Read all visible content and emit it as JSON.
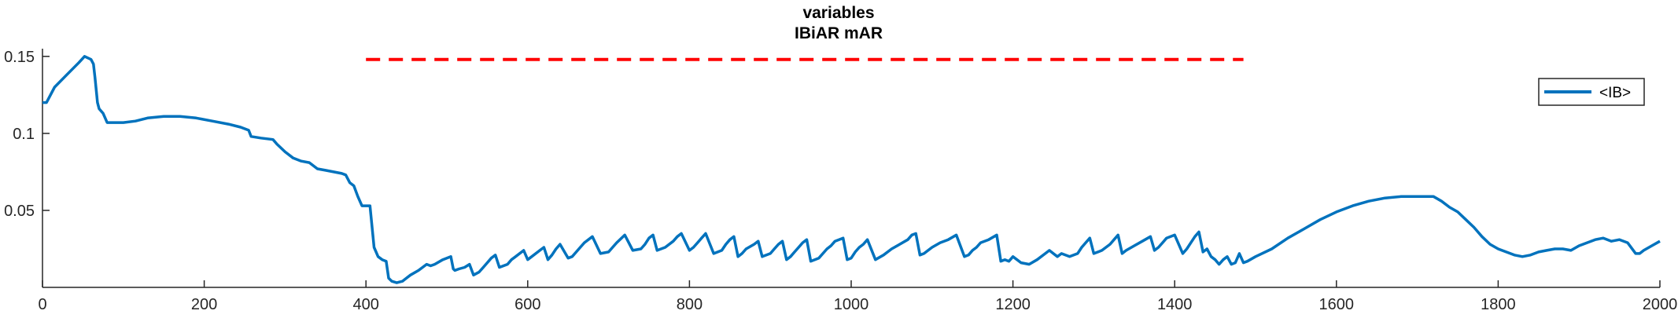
{
  "chart_data": {
    "type": "line",
    "title": [
      "variables",
      "IBiAR mAR"
    ],
    "xlabel": "",
    "ylabel": "",
    "xlim": [
      0,
      2000
    ],
    "ylim": [
      0.0,
      0.155
    ],
    "xticks": [
      0,
      200,
      400,
      600,
      800,
      1000,
      1200,
      1400,
      1600,
      1800,
      2000
    ],
    "xtick_labels": [
      "0",
      "200",
      "400",
      "600",
      "800",
      "1000",
      "1200",
      "1400",
      "1600",
      "1800",
      "2000"
    ],
    "yticks": [
      0.05,
      0.1,
      0.15
    ],
    "ytick_labels": [
      "0.05",
      "0.1",
      "0.15"
    ],
    "grid": false,
    "legend_position": "top-right",
    "series": [
      {
        "name": "<IB>",
        "color": "#0072BD",
        "x": [
          0,
          5,
          15,
          30,
          45,
          52,
          60,
          63,
          65,
          68,
          70,
          75,
          80,
          82,
          90,
          100,
          115,
          130,
          150,
          170,
          190,
          210,
          230,
          245,
          255,
          258,
          270,
          285,
          290,
          300,
          310,
          320,
          330,
          340,
          350,
          360,
          370,
          375,
          380,
          385,
          390,
          395,
          400,
          402,
          405,
          410,
          415,
          420,
          425,
          428,
          432,
          438,
          445,
          450,
          455,
          465,
          475,
          480,
          485,
          495,
          505,
          508,
          510,
          515,
          522,
          528,
          533,
          540,
          545,
          550,
          555,
          560,
          565,
          575,
          580,
          585,
          595,
          600,
          605,
          615,
          620,
          625,
          630,
          635,
          640,
          650,
          655,
          660,
          665,
          670,
          680,
          690,
          700,
          705,
          710,
          720,
          730,
          740,
          745,
          750,
          755,
          760,
          770,
          780,
          785,
          790,
          800,
          805,
          810,
          815,
          820,
          830,
          840,
          845,
          850,
          855,
          860,
          865,
          870,
          880,
          885,
          890,
          900,
          905,
          910,
          915,
          920,
          925,
          930,
          935,
          940,
          945,
          950,
          960,
          965,
          970,
          975,
          980,
          990,
          995,
          1000,
          1005,
          1010,
          1015,
          1020,
          1030,
          1040,
          1050,
          1060,
          1070,
          1075,
          1080,
          1085,
          1090,
          1100,
          1110,
          1120,
          1130,
          1140,
          1145,
          1150,
          1155,
          1160,
          1170,
          1180,
          1185,
          1190,
          1195,
          1200,
          1210,
          1220,
          1230,
          1240,
          1245,
          1250,
          1255,
          1260,
          1270,
          1280,
          1285,
          1290,
          1295,
          1300,
          1310,
          1320,
          1325,
          1330,
          1335,
          1340,
          1350,
          1360,
          1370,
          1375,
          1380,
          1385,
          1390,
          1400,
          1410,
          1415,
          1420,
          1425,
          1430,
          1435,
          1440,
          1445,
          1450,
          1455,
          1460,
          1465,
          1470,
          1475,
          1480,
          1485,
          1490,
          1500,
          1520,
          1540,
          1560,
          1580,
          1600,
          1620,
          1640,
          1660,
          1680,
          1700,
          1708,
          1712,
          1720,
          1730,
          1740,
          1750,
          1760,
          1770,
          1780,
          1790,
          1800,
          1810,
          1820,
          1830,
          1840,
          1850,
          1860,
          1870,
          1880,
          1890,
          1900,
          1910,
          1920,
          1930,
          1940,
          1950,
          1960,
          1970,
          1975,
          1980,
          1990,
          2000
        ],
        "values": [
          0.12,
          0.12,
          0.13,
          0.138,
          0.146,
          0.15,
          0.148,
          0.145,
          0.136,
          0.12,
          0.116,
          0.113,
          0.107,
          0.107,
          0.107,
          0.107,
          0.108,
          0.11,
          0.111,
          0.111,
          0.11,
          0.108,
          0.106,
          0.104,
          0.102,
          0.098,
          0.097,
          0.096,
          0.093,
          0.088,
          0.084,
          0.082,
          0.081,
          0.077,
          0.076,
          0.075,
          0.074,
          0.073,
          0.068,
          0.066,
          0.059,
          0.053,
          0.053,
          0.053,
          0.053,
          0.026,
          0.02,
          0.018,
          0.017,
          0.006,
          0.004,
          0.003,
          0.004,
          0.006,
          0.008,
          0.011,
          0.015,
          0.014,
          0.015,
          0.018,
          0.02,
          0.012,
          0.011,
          0.012,
          0.013,
          0.015,
          0.008,
          0.01,
          0.013,
          0.016,
          0.019,
          0.021,
          0.013,
          0.015,
          0.018,
          0.02,
          0.024,
          0.018,
          0.02,
          0.024,
          0.026,
          0.018,
          0.021,
          0.025,
          0.028,
          0.019,
          0.02,
          0.023,
          0.026,
          0.029,
          0.033,
          0.022,
          0.023,
          0.026,
          0.029,
          0.034,
          0.024,
          0.025,
          0.028,
          0.032,
          0.034,
          0.024,
          0.026,
          0.03,
          0.033,
          0.035,
          0.024,
          0.026,
          0.029,
          0.032,
          0.035,
          0.022,
          0.024,
          0.028,
          0.031,
          0.033,
          0.02,
          0.022,
          0.025,
          0.028,
          0.03,
          0.02,
          0.022,
          0.025,
          0.028,
          0.03,
          0.018,
          0.02,
          0.023,
          0.026,
          0.029,
          0.031,
          0.017,
          0.019,
          0.022,
          0.025,
          0.027,
          0.03,
          0.032,
          0.018,
          0.019,
          0.023,
          0.026,
          0.028,
          0.031,
          0.018,
          0.021,
          0.025,
          0.028,
          0.031,
          0.034,
          0.035,
          0.021,
          0.022,
          0.026,
          0.029,
          0.031,
          0.034,
          0.02,
          0.021,
          0.024,
          0.026,
          0.029,
          0.031,
          0.034,
          0.017,
          0.018,
          0.017,
          0.02,
          0.016,
          0.015,
          0.018,
          0.022,
          0.024,
          0.022,
          0.02,
          0.022,
          0.02,
          0.022,
          0.026,
          0.029,
          0.032,
          0.022,
          0.024,
          0.028,
          0.031,
          0.034,
          0.022,
          0.024,
          0.027,
          0.03,
          0.033,
          0.024,
          0.026,
          0.029,
          0.032,
          0.034,
          0.022,
          0.025,
          0.029,
          0.033,
          0.036,
          0.023,
          0.025,
          0.02,
          0.018,
          0.015,
          0.018,
          0.02,
          0.015,
          0.016,
          0.022,
          0.016,
          0.017,
          0.02,
          0.025,
          0.032,
          0.038,
          0.044,
          0.049,
          0.053,
          0.056,
          0.058,
          0.059,
          0.059,
          0.059,
          0.059,
          0.059,
          0.056,
          0.052,
          0.049,
          0.044,
          0.039,
          0.033,
          0.028,
          0.025,
          0.023,
          0.021,
          0.02,
          0.021,
          0.023,
          0.024,
          0.025,
          0.025,
          0.024,
          0.027,
          0.029,
          0.031,
          0.032,
          0.03,
          0.031,
          0.029,
          0.022,
          0.022,
          0.024,
          0.027,
          0.03
        ]
      },
      {
        "name": "",
        "color": "#FF0000",
        "style": "dashed",
        "x": [
          400,
          1485
        ],
        "values": [
          0.148,
          0.148
        ]
      }
    ]
  }
}
